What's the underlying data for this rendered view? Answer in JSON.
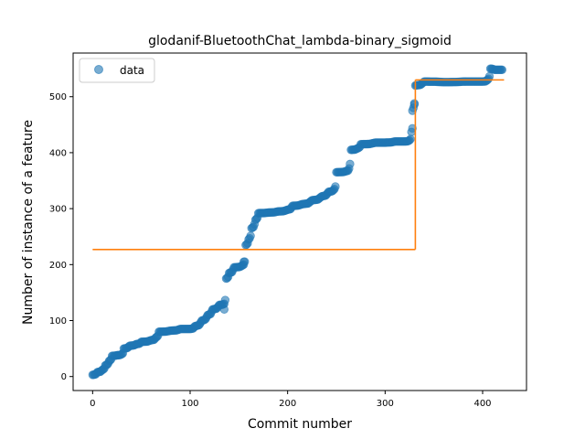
{
  "chart_data": {
    "type": "scatter",
    "title": "glodanif-BluetoothChat_lambda-binary_sigmoid",
    "xlabel": "Commit number",
    "ylabel": "Number of instance of a feature",
    "xlim": [
      -20,
      445
    ],
    "ylim": [
      -25,
      578
    ],
    "xticks": [
      0,
      100,
      200,
      300,
      400
    ],
    "yticks": [
      0,
      100,
      200,
      300,
      400,
      500
    ],
    "grid": false,
    "legend": {
      "position": "top-left",
      "entries": [
        "data"
      ]
    },
    "colors": {
      "data": "#1f77b4",
      "fit": "#ff7f0e"
    },
    "data_anchors": [
      [
        0,
        3
      ],
      [
        5,
        8
      ],
      [
        10,
        12
      ],
      [
        13,
        20
      ],
      [
        17,
        28
      ],
      [
        20,
        37
      ],
      [
        25,
        38
      ],
      [
        30,
        40
      ],
      [
        32,
        50
      ],
      [
        38,
        55
      ],
      [
        45,
        58
      ],
      [
        50,
        62
      ],
      [
        60,
        65
      ],
      [
        65,
        70
      ],
      [
        68,
        80
      ],
      [
        80,
        82
      ],
      [
        90,
        85
      ],
      [
        100,
        85
      ],
      [
        105,
        90
      ],
      [
        112,
        100
      ],
      [
        118,
        110
      ],
      [
        123,
        120
      ],
      [
        130,
        128
      ],
      [
        135,
        130
      ],
      [
        137,
        175
      ],
      [
        140,
        185
      ],
      [
        145,
        195
      ],
      [
        155,
        200
      ],
      [
        157,
        235
      ],
      [
        160,
        245
      ],
      [
        163,
        265
      ],
      [
        167,
        280
      ],
      [
        170,
        292
      ],
      [
        180,
        293
      ],
      [
        190,
        295
      ],
      [
        200,
        298
      ],
      [
        205,
        305
      ],
      [
        215,
        308
      ],
      [
        225,
        315
      ],
      [
        235,
        322
      ],
      [
        242,
        330
      ],
      [
        248,
        335
      ],
      [
        250,
        365
      ],
      [
        262,
        368
      ],
      [
        265,
        405
      ],
      [
        272,
        408
      ],
      [
        275,
        415
      ],
      [
        290,
        418
      ],
      [
        300,
        418
      ],
      [
        310,
        420
      ],
      [
        320,
        420
      ],
      [
        325,
        422
      ],
      [
        327,
        437
      ],
      [
        329,
        480
      ],
      [
        331,
        520
      ],
      [
        340,
        527
      ],
      [
        360,
        526
      ],
      [
        380,
        527
      ],
      [
        400,
        527
      ],
      [
        405,
        530
      ],
      [
        408,
        550
      ],
      [
        412,
        548
      ],
      [
        420,
        548
      ]
    ],
    "outliers": [
      [
        135,
        120
      ],
      [
        155,
        205
      ],
      [
        330,
        488
      ],
      [
        328,
        475
      ]
    ],
    "fit_segments": [
      {
        "x": [
          0,
          331
        ],
        "y": [
          227,
          227
        ]
      },
      {
        "x": [
          331,
          331
        ],
        "y": [
          227,
          530
        ]
      },
      {
        "x": [
          331,
          422
        ],
        "y": [
          530,
          530
        ]
      }
    ]
  }
}
